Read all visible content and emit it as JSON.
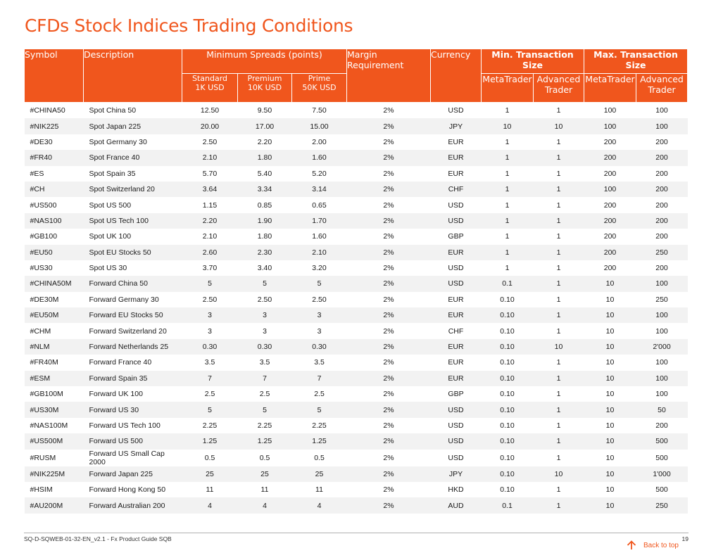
{
  "title": "CFDs Stock Indices Trading Conditions",
  "colors": {
    "accent": "#f0561d",
    "stripe": "#f2f2f2"
  },
  "table": {
    "headers": {
      "symbol": "Symbol",
      "description": "Description",
      "min_spreads": "Minimum Spreads (points)",
      "spread_standard": [
        "Standard",
        "1K USD"
      ],
      "spread_premium": [
        "Premium",
        "10K USD"
      ],
      "spread_prime": [
        "Prime",
        "50K USD"
      ],
      "margin": [
        "Margin",
        "Requirement"
      ],
      "currency": "Currency",
      "min_tx": "Min. Transaction Size",
      "max_tx": "Max. Transaction Size",
      "metatrader": "MetaTrader",
      "advanced_trader": [
        "Advanced",
        "Trader"
      ]
    },
    "rows": [
      [
        "#CHINA50",
        "Spot China 50",
        "12.50",
        "9.50",
        "7.50",
        "2%",
        "USD",
        "1",
        "1",
        "100",
        "100"
      ],
      [
        "#NIK225",
        "Spot Japan 225",
        "20.00",
        "17.00",
        "15.00",
        "2%",
        "JPY",
        "10",
        "10",
        "100",
        "100"
      ],
      [
        "#DE30",
        "Spot Germany 30",
        "2.50",
        "2.20",
        "2.00",
        "2%",
        "EUR",
        "1",
        "1",
        "200",
        "200"
      ],
      [
        "#FR40",
        "Spot France 40",
        "2.10",
        "1.80",
        "1.60",
        "2%",
        "EUR",
        "1",
        "1",
        "200",
        "200"
      ],
      [
        "#ES",
        "Spot Spain 35",
        "5.70",
        "5.40",
        "5.20",
        "2%",
        "EUR",
        "1",
        "1",
        "200",
        "200"
      ],
      [
        "#CH",
        "Spot Switzerland 20",
        "3.64",
        "3.34",
        "3.14",
        "2%",
        "CHF",
        "1",
        "1",
        "100",
        "200"
      ],
      [
        "#US500",
        "Spot US 500",
        "1.15",
        "0.85",
        "0.65",
        "2%",
        "USD",
        "1",
        "1",
        "200",
        "200"
      ],
      [
        "#NAS100",
        "Spot US Tech 100",
        "2.20",
        "1.90",
        "1.70",
        "2%",
        "USD",
        "1",
        "1",
        "200",
        "200"
      ],
      [
        "#GB100",
        "Spot UK 100",
        "2.10",
        "1.80",
        "1.60",
        "2%",
        "GBP",
        "1",
        "1",
        "200",
        "200"
      ],
      [
        "#EU50",
        "Spot EU Stocks 50",
        "2.60",
        "2.30",
        "2.10",
        "2%",
        "EUR",
        "1",
        "1",
        "200",
        "250"
      ],
      [
        "#US30",
        "Spot US 30",
        "3.70",
        "3.40",
        "3.20",
        "2%",
        "USD",
        "1",
        "1",
        "200",
        "200"
      ],
      [
        "#CHINA50M",
        "Forward China 50",
        "5",
        "5",
        "5",
        "2%",
        "USD",
        "0.1",
        "1",
        "10",
        "100"
      ],
      [
        "#DE30M",
        "Forward Germany 30",
        "2.50",
        "2.50",
        "2.50",
        "2%",
        "EUR",
        "0.10",
        "1",
        "10",
        "250"
      ],
      [
        "#EU50M",
        "Forward EU Stocks 50",
        "3",
        "3",
        "3",
        "2%",
        "EUR",
        "0.10",
        "1",
        "10",
        "100"
      ],
      [
        "#CHM",
        "Forward Switzerland 20",
        "3",
        "3",
        "3",
        "2%",
        "CHF",
        "0.10",
        "1",
        "10",
        "100"
      ],
      [
        "#NLM",
        "Forward Netherlands 25",
        "0.30",
        "0.30",
        "0.30",
        "2%",
        "EUR",
        "0.10",
        "10",
        "10",
        "2'000"
      ],
      [
        "#FR40M",
        "Forward France 40",
        "3.5",
        "3.5",
        "3.5",
        "2%",
        "EUR",
        "0.10",
        "1",
        "10",
        "100"
      ],
      [
        "#ESM",
        "Forward Spain 35",
        "7",
        "7",
        "7",
        "2%",
        "EUR",
        "0.10",
        "1",
        "10",
        "100"
      ],
      [
        "#GB100M",
        "Forward UK 100",
        "2.5",
        "2.5",
        "2.5",
        "2%",
        "GBP",
        "0.10",
        "1",
        "10",
        "100"
      ],
      [
        "#US30M",
        "Forward US 30",
        "5",
        "5",
        "5",
        "2%",
        "USD",
        "0.10",
        "1",
        "10",
        "50"
      ],
      [
        "#NAS100M",
        "Forward US Tech 100",
        "2.25",
        "2.25",
        "2.25",
        "2%",
        "USD",
        "0.10",
        "1",
        "10",
        "200"
      ],
      [
        "#US500M",
        "Forward US 500",
        "1.25",
        "1.25",
        "1.25",
        "2%",
        "USD",
        "0.10",
        "1",
        "10",
        "500"
      ],
      [
        "#RUSM",
        "Forward US Small Cap 2000",
        "0.5",
        "0.5",
        "0.5",
        "2%",
        "USD",
        "0.10",
        "1",
        "10",
        "500"
      ],
      [
        "#NIK225M",
        "Forward Japan 225",
        "25",
        "25",
        "25",
        "2%",
        "JPY",
        "0.10",
        "10",
        "10",
        "1'000"
      ],
      [
        "#HSIM",
        "Forward Hong Kong 50",
        "11",
        "11",
        "11",
        "2%",
        "HKD",
        "0.10",
        "1",
        "10",
        "500"
      ],
      [
        "#AU200M",
        "Forward Australian 200",
        "4",
        "4",
        "4",
        "2%",
        "AUD",
        "0.1",
        "1",
        "10",
        "250"
      ]
    ]
  },
  "footer": {
    "code": "SQ-D-SQWEB-01-32-EN_v2.1 - Fx Product Guide SQB",
    "page_number": "19",
    "back_to_top": "Back to top",
    "back_icon": "arrow-up-icon"
  }
}
